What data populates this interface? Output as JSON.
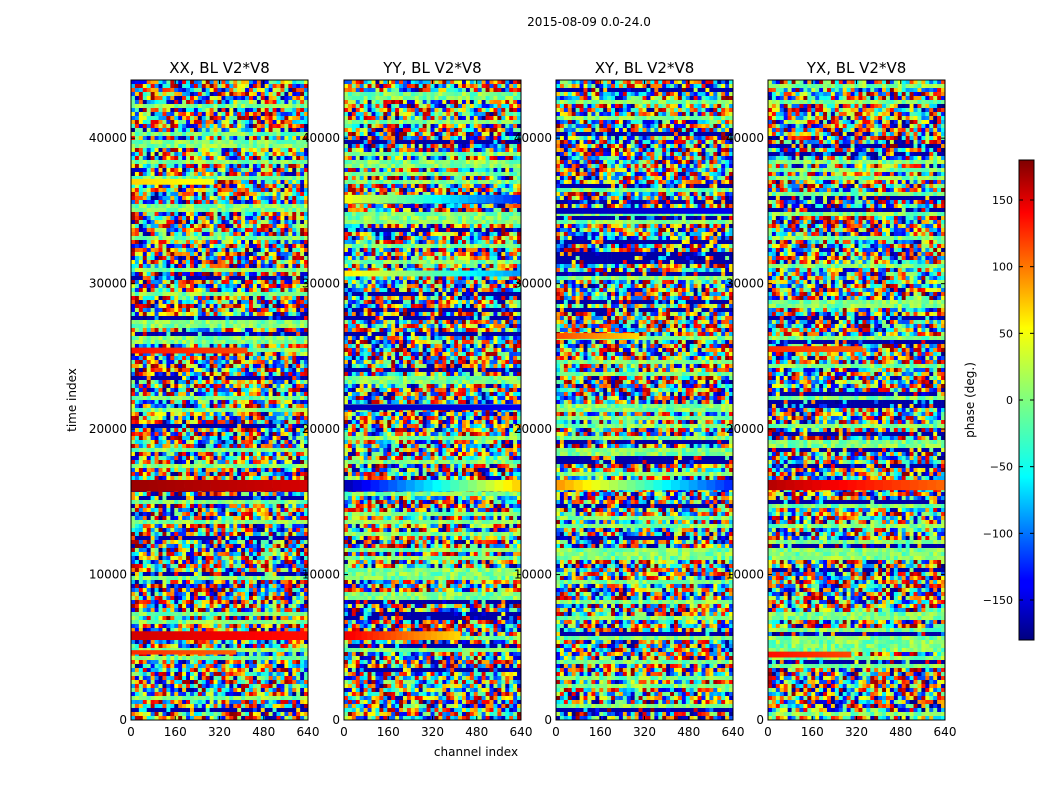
{
  "figure_title": "2015-08-09 0.0-24.0",
  "chart_data": [
    {
      "type": "heatmap",
      "title": "XX, BL V2*V8",
      "xlabel": "",
      "ylabel": "time index",
      "xlim": [
        0,
        640
      ],
      "ylim": [
        0,
        44000
      ],
      "xticks": [
        "0",
        "160",
        "320",
        "480",
        "640"
      ],
      "yticks": [
        "0",
        "10000",
        "20000",
        "30000",
        "40000"
      ],
      "bands": [
        {
          "t_start": 5500,
          "t_end": 6100,
          "phase_start": 150,
          "phase_end": 130,
          "ch_end": 640
        },
        {
          "t_start": 15700,
          "t_end": 16500,
          "phase_start": 170,
          "phase_end": 150,
          "ch_end": 640
        },
        {
          "t_start": 25200,
          "t_end": 25600,
          "phase_start": 130,
          "phase_end": 110,
          "ch_end": 420
        },
        {
          "t_start": 36800,
          "t_end": 37200,
          "phase_start": 60,
          "phase_end": 40,
          "ch_end": 300
        },
        {
          "t_start": 4500,
          "t_end": 4800,
          "phase_start": 120,
          "phase_end": 100,
          "ch_end": 380
        }
      ]
    },
    {
      "type": "heatmap",
      "title": "YY, BL V2*V8",
      "xlabel": "channel index",
      "ylabel": "",
      "xlim": [
        0,
        640
      ],
      "ylim": [
        0,
        44000
      ],
      "xticks": [
        "0",
        "160",
        "320",
        "480",
        "640"
      ],
      "yticks": [
        "0",
        "10000",
        "20000",
        "30000",
        "40000"
      ],
      "bands": [
        {
          "t_start": 5500,
          "t_end": 6100,
          "phase_start": 140,
          "phase_end": 60,
          "ch_end": 420
        },
        {
          "t_start": 15700,
          "t_end": 16500,
          "phase_start": -160,
          "phase_end": 60,
          "ch_end": 640
        },
        {
          "t_start": 21300,
          "t_end": 21700,
          "phase_start": -160,
          "phase_end": -140,
          "ch_end": 640
        },
        {
          "t_start": 35500,
          "t_end": 36100,
          "phase_start": 40,
          "phase_end": -120,
          "ch_end": 640
        },
        {
          "t_start": 30500,
          "t_end": 30900,
          "phase_start": 50,
          "phase_end": -80,
          "ch_end": 640
        }
      ]
    },
    {
      "type": "heatmap",
      "title": "XY, BL V2*V8",
      "xlabel": "",
      "ylabel": "",
      "xlim": [
        0,
        640
      ],
      "ylim": [
        0,
        44000
      ],
      "xticks": [
        "0",
        "160",
        "320",
        "480",
        "640"
      ],
      "yticks": [
        "0",
        "10000",
        "20000",
        "30000",
        "40000"
      ],
      "bands": [
        {
          "t_start": 15800,
          "t_end": 16500,
          "phase_start": 80,
          "phase_end": -120,
          "ch_end": 640
        },
        {
          "t_start": 34800,
          "t_end": 35200,
          "phase_start": -160,
          "phase_end": -140,
          "ch_end": 640
        },
        {
          "t_start": 26200,
          "t_end": 26600,
          "phase_start": 110,
          "phase_end": 60,
          "ch_end": 300
        }
      ]
    },
    {
      "type": "heatmap",
      "title": "YX, BL V2*V8",
      "xlabel": "",
      "ylabel": "",
      "xlim": [
        0,
        640
      ],
      "ylim": [
        0,
        44000
      ],
      "xticks": [
        "0",
        "160",
        "320",
        "480",
        "640"
      ],
      "yticks": [
        "0",
        "10000",
        "20000",
        "30000",
        "40000"
      ],
      "bands": [
        {
          "t_start": 15800,
          "t_end": 16500,
          "phase_start": 160,
          "phase_end": 100,
          "ch_end": 640
        },
        {
          "t_start": 25300,
          "t_end": 25700,
          "phase_start": 120,
          "phase_end": 100,
          "ch_end": 340
        },
        {
          "t_start": 4300,
          "t_end": 4700,
          "phase_start": 130,
          "phase_end": 110,
          "ch_end": 300
        }
      ]
    }
  ],
  "colorbar": {
    "label": "phase (deg.)",
    "range": [
      -180,
      180
    ],
    "ticks": [
      "150",
      "100",
      "50",
      "0",
      "−50",
      "−100",
      "−150"
    ],
    "tick_values": [
      150,
      100,
      50,
      0,
      -50,
      -100,
      -150
    ],
    "colormap": "jet"
  }
}
